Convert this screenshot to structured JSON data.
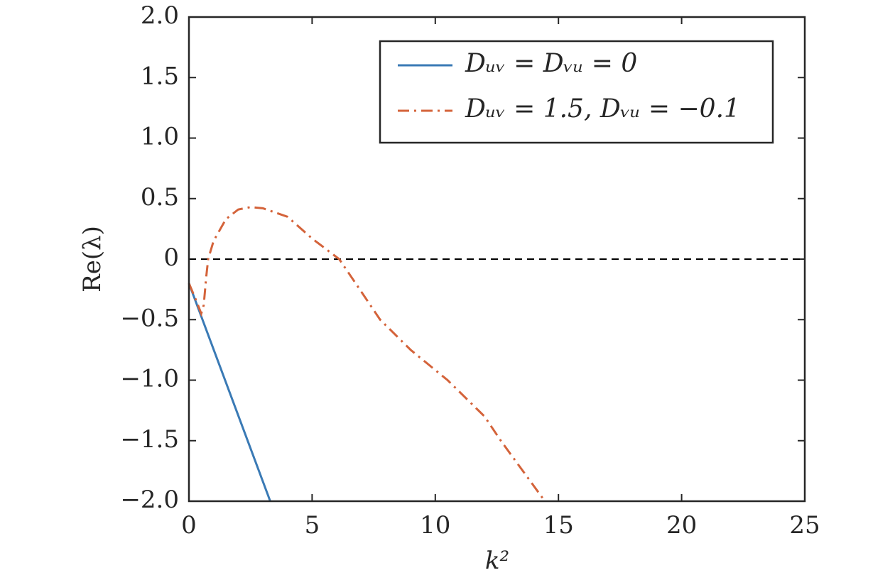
{
  "chart_data": {
    "type": "line",
    "xlabel": "k²",
    "ylabel": "Re(λ)",
    "xlim": [
      0,
      25
    ],
    "ylim": [
      -2,
      2
    ],
    "xticks": [
      0,
      5,
      10,
      15,
      20,
      25
    ],
    "yticks": [
      {
        "value": 2,
        "label": "2.0"
      },
      {
        "value": 1.5,
        "label": "1.5"
      },
      {
        "value": 1,
        "label": "1.0"
      },
      {
        "value": 0.5,
        "label": "0.5"
      },
      0,
      {
        "value": -0.5,
        "label": "−0.5"
      },
      {
        "value": -1,
        "label": "−1.0"
      },
      {
        "value": -1.5,
        "label": "−1.5"
      },
      {
        "value": -2,
        "label": "−2.0"
      }
    ],
    "hline": 0,
    "legend": "upper right",
    "series": [
      {
        "name": "Dᵤᵥ = Dᵥᵤ = 0",
        "color": "#3a7ab5",
        "dash": "solid",
        "x": [
          0,
          3.3
        ],
        "values": [
          -0.2,
          -2.0
        ]
      },
      {
        "name": "Dᵤᵥ = 1.5,  Dᵥᵤ = −0.1",
        "color": "#d4633a",
        "dash": "dashdot",
        "x": [
          0,
          0.25,
          0.5,
          0.6,
          0.7,
          0.78,
          1.0,
          1.5,
          2.0,
          2.5,
          3,
          4,
          5,
          6.1,
          7,
          7.76,
          9,
          10.5,
          12,
          12.66,
          14.45
        ],
        "values": [
          -0.2,
          -0.32,
          -0.45,
          -0.38,
          -0.15,
          0,
          0.15,
          0.33,
          0.41,
          0.43,
          0.42,
          0.35,
          0.17,
          0,
          -0.27,
          -0.5,
          -0.75,
          -1.0,
          -1.3,
          -1.5,
          -2.0
        ]
      }
    ]
  }
}
